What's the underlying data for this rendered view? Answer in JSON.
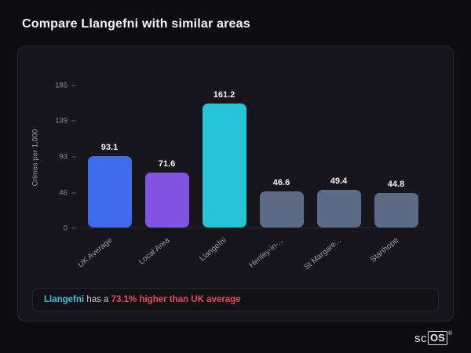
{
  "page": {
    "title": "Compare Llangefni with similar areas"
  },
  "chart_data": {
    "type": "bar",
    "categories": [
      "UK Average",
      "Local Area",
      "Llangefni",
      "Henley-in-...",
      "St Margare...",
      "Stanhope"
    ],
    "values": [
      93.1,
      71.6,
      161.2,
      46.6,
      49.4,
      44.8
    ],
    "bar_colors": [
      "#3d6cea",
      "#8353e2",
      "#27c3d6",
      "#5d6c86",
      "#5d6c86",
      "#5d6c86"
    ],
    "ylabel": "Crimes per 1,000",
    "yticks": [
      185,
      139,
      93,
      46,
      0
    ],
    "ylim": [
      0,
      185
    ],
    "grid": false,
    "legend": false
  },
  "summary": {
    "area": "Llangefni",
    "middle": " has a ",
    "stat": "73.1% higher than UK average",
    "area_color": "#2cc8da",
    "stat_color": "#e84a56"
  },
  "logo": {
    "prefix": "sc",
    "boxed": "OS",
    "registered": "®"
  }
}
